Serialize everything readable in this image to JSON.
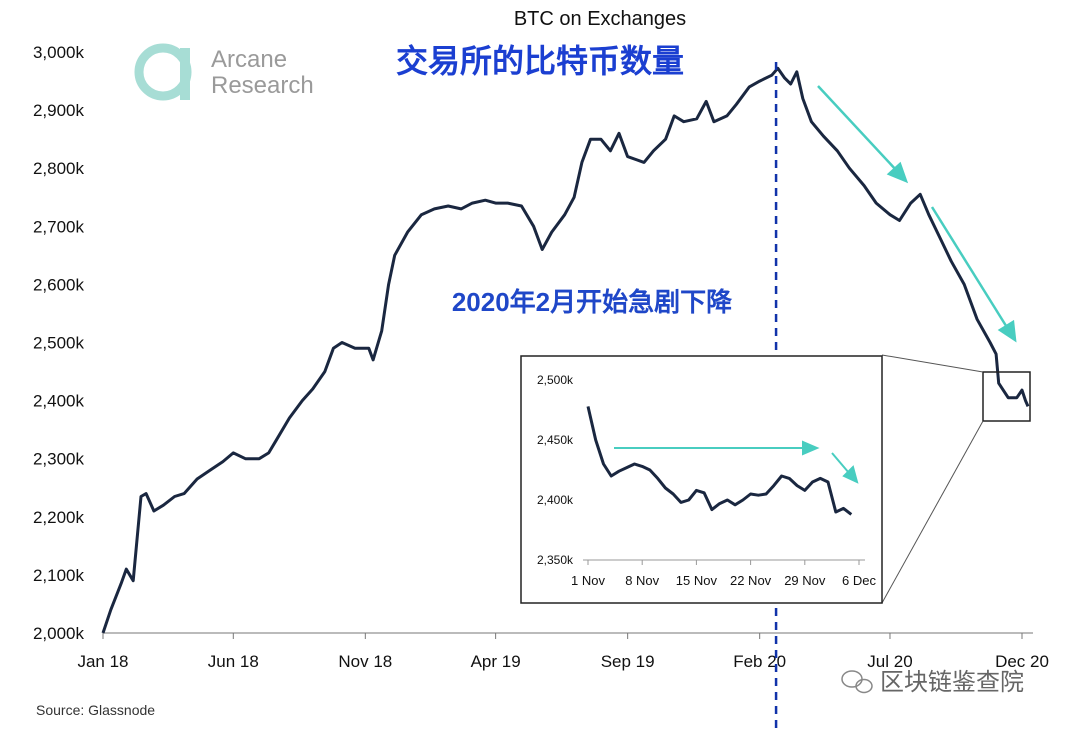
{
  "chart_data": {
    "type": "line",
    "title": "BTC on Exchanges",
    "overlay_title": "交易所的比特币数量",
    "annotation": "2020年2月开始急剧下降",
    "source": "Source: Glassnode",
    "logo_text": [
      "Arcane",
      "Research"
    ],
    "watermark": "区块链鉴查院",
    "x_ticks": [
      "Jan 18",
      "Jun 18",
      "Nov 18",
      "Apr 19",
      "Sep 19",
      "Feb 20",
      "Jul 20",
      "Dec 20"
    ],
    "y_ticks": [
      "2,000k",
      "2,100k",
      "2,200k",
      "2,300k",
      "2,400k",
      "2,500k",
      "2,600k",
      "2,700k",
      "2,800k",
      "2,900k",
      "3,000k"
    ],
    "ylim": [
      2000,
      3000
    ],
    "y_unit": "k BTC",
    "marker_date": "Feb 20",
    "series": [
      {
        "color": "#1a2740",
        "points": [
          [
            "2018-01-01",
            2000
          ],
          [
            "2018-01-10",
            2040
          ],
          [
            "2018-01-22",
            2085
          ],
          [
            "2018-01-28",
            2110
          ],
          [
            "2018-02-05",
            2090
          ],
          [
            "2018-02-14",
            2235
          ],
          [
            "2018-02-20",
            2240
          ],
          [
            "2018-03-01",
            2210
          ],
          [
            "2018-03-12",
            2220
          ],
          [
            "2018-03-25",
            2235
          ],
          [
            "2018-04-05",
            2240
          ],
          [
            "2018-04-20",
            2265
          ],
          [
            "2018-05-05",
            2280
          ],
          [
            "2018-05-20",
            2295
          ],
          [
            "2018-06-01",
            2310
          ],
          [
            "2018-06-15",
            2300
          ],
          [
            "2018-07-01",
            2300
          ],
          [
            "2018-07-12",
            2310
          ],
          [
            "2018-07-20",
            2330
          ],
          [
            "2018-08-05",
            2370
          ],
          [
            "2018-08-20",
            2400
          ],
          [
            "2018-09-01",
            2420
          ],
          [
            "2018-09-15",
            2450
          ],
          [
            "2018-09-25",
            2490
          ],
          [
            "2018-10-05",
            2500
          ],
          [
            "2018-10-20",
            2490
          ],
          [
            "2018-11-05",
            2490
          ],
          [
            "2018-11-10",
            2470
          ],
          [
            "2018-11-20",
            2520
          ],
          [
            "2018-11-28",
            2600
          ],
          [
            "2018-12-05",
            2650
          ],
          [
            "2018-12-20",
            2690
          ],
          [
            "2019-01-05",
            2720
          ],
          [
            "2019-01-20",
            2730
          ],
          [
            "2019-02-05",
            2735
          ],
          [
            "2019-02-20",
            2730
          ],
          [
            "2019-03-05",
            2740
          ],
          [
            "2019-03-20",
            2745
          ],
          [
            "2019-04-01",
            2740
          ],
          [
            "2019-04-15",
            2740
          ],
          [
            "2019-05-01",
            2735
          ],
          [
            "2019-05-15",
            2700
          ],
          [
            "2019-05-25",
            2660
          ],
          [
            "2019-06-05",
            2690
          ],
          [
            "2019-06-20",
            2720
          ],
          [
            "2019-07-01",
            2750
          ],
          [
            "2019-07-10",
            2810
          ],
          [
            "2019-07-20",
            2850
          ],
          [
            "2019-08-01",
            2850
          ],
          [
            "2019-08-12",
            2830
          ],
          [
            "2019-08-22",
            2860
          ],
          [
            "2019-09-01",
            2820
          ],
          [
            "2019-09-20",
            2810
          ],
          [
            "2019-10-01",
            2830
          ],
          [
            "2019-10-15",
            2850
          ],
          [
            "2019-10-25",
            2890
          ],
          [
            "2019-11-05",
            2880
          ],
          [
            "2019-11-20",
            2885
          ],
          [
            "2019-12-01",
            2915
          ],
          [
            "2019-12-10",
            2880
          ],
          [
            "2019-12-25",
            2890
          ],
          [
            "2020-01-05",
            2910
          ],
          [
            "2020-01-20",
            2940
          ],
          [
            "2020-02-01",
            2950
          ],
          [
            "2020-02-15",
            2960
          ],
          [
            "2020-02-22",
            2972
          ],
          [
            "2020-03-01",
            2955
          ],
          [
            "2020-03-08",
            2945
          ],
          [
            "2020-03-15",
            2966
          ],
          [
            "2020-03-22",
            2920
          ],
          [
            "2020-04-01",
            2880
          ],
          [
            "2020-04-15",
            2855
          ],
          [
            "2020-05-01",
            2830
          ],
          [
            "2020-05-15",
            2800
          ],
          [
            "2020-06-01",
            2770
          ],
          [
            "2020-06-15",
            2740
          ],
          [
            "2020-07-01",
            2720
          ],
          [
            "2020-07-12",
            2710
          ],
          [
            "2020-07-25",
            2740
          ],
          [
            "2020-08-05",
            2755
          ],
          [
            "2020-08-15",
            2720
          ],
          [
            "2020-08-28",
            2680
          ],
          [
            "2020-09-10",
            2640
          ],
          [
            "2020-09-25",
            2600
          ],
          [
            "2020-10-10",
            2540
          ],
          [
            "2020-10-25",
            2500
          ],
          [
            "2020-11-01",
            2480
          ],
          [
            "2020-11-04",
            2430
          ],
          [
            "2020-11-15",
            2405
          ],
          [
            "2020-11-25",
            2405
          ],
          [
            "2020-12-01",
            2418
          ],
          [
            "2020-12-05",
            2400
          ],
          [
            "2020-12-08",
            2390
          ]
        ]
      }
    ],
    "inset": {
      "type": "line",
      "x_ticks": [
        "1 Nov",
        "8 Nov",
        "15 Nov",
        "22 Nov",
        "29 Nov",
        "6 Dec"
      ],
      "y_ticks": [
        "2,350k",
        "2,400k",
        "2,450k",
        "2,500k"
      ],
      "ylim": [
        2350,
        2500
      ],
      "points": [
        [
          "2020-11-01",
          2478
        ],
        [
          "2020-11-02",
          2450
        ],
        [
          "2020-11-03",
          2430
        ],
        [
          "2020-11-04",
          2420
        ],
        [
          "2020-11-05",
          2424
        ],
        [
          "2020-11-06",
          2427
        ],
        [
          "2020-11-07",
          2430
        ],
        [
          "2020-11-08",
          2428
        ],
        [
          "2020-11-09",
          2425
        ],
        [
          "2020-11-10",
          2418
        ],
        [
          "2020-11-11",
          2410
        ],
        [
          "2020-11-12",
          2405
        ],
        [
          "2020-11-13",
          2398
        ],
        [
          "2020-11-14",
          2400
        ],
        [
          "2020-11-15",
          2408
        ],
        [
          "2020-11-16",
          2406
        ],
        [
          "2020-11-17",
          2392
        ],
        [
          "2020-11-18",
          2397
        ],
        [
          "2020-11-19",
          2400
        ],
        [
          "2020-11-20",
          2396
        ],
        [
          "2020-11-21",
          2400
        ],
        [
          "2020-11-22",
          2405
        ],
        [
          "2020-11-23",
          2404
        ],
        [
          "2020-11-24",
          2405
        ],
        [
          "2020-11-25",
          2412
        ],
        [
          "2020-11-26",
          2420
        ],
        [
          "2020-11-27",
          2418
        ],
        [
          "2020-11-28",
          2412
        ],
        [
          "2020-11-29",
          2408
        ],
        [
          "2020-11-30",
          2415
        ],
        [
          "2020-12-01",
          2418
        ],
        [
          "2020-12-02",
          2415
        ],
        [
          "2020-12-03",
          2390
        ],
        [
          "2020-12-04",
          2393
        ],
        [
          "2020-12-05",
          2388
        ]
      ]
    },
    "colors": {
      "line": "#1a2740",
      "axis": "#666666",
      "arrow": "#48cdc0",
      "marker": "#1133aa",
      "annotation": "#1f47c8",
      "logo": "#a7ddd5",
      "logo_text": "#9a9a9a"
    }
  }
}
